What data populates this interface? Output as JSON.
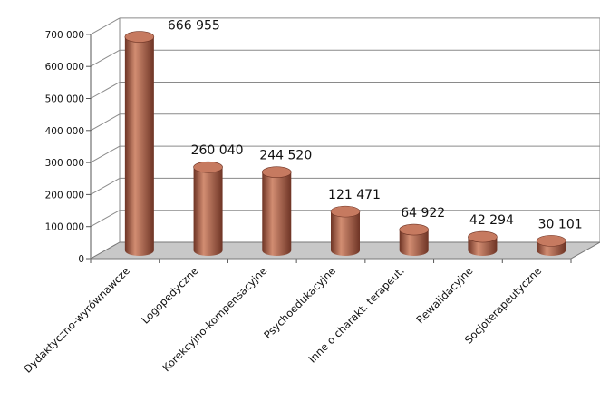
{
  "chart_data": {
    "type": "bar",
    "style": "3d-cylinder",
    "categories": [
      "Dydaktyczno-wyrównawcze",
      "Logopedyczne",
      "Korekcyjno-kompensacyjne",
      "Psychoedukacyjne",
      "Inne o charakt. terapeut.",
      "Rewalidacyjne",
      "Socjoterapeutyczne"
    ],
    "values": [
      666955,
      260040,
      244520,
      121471,
      64922,
      42294,
      30101
    ],
    "data_labels": [
      "666 955",
      "260 040",
      "244 520",
      "121 471",
      "64 922",
      "42 294",
      "30 101"
    ],
    "y_ticks": [
      "0",
      "100 000",
      "200 000",
      "300 000",
      "400 000",
      "500 000",
      "600 000",
      "700 000"
    ],
    "ylim": [
      0,
      700000
    ],
    "title": "",
    "xlabel": "",
    "ylabel": "",
    "grid": true,
    "legend": "none",
    "colors": {
      "bar_body": "#a65a42",
      "bar_light": "#d28d72",
      "bar_dark": "#6e3425",
      "bar_top": "#c67a60",
      "floor": "#c8c8c8",
      "gridline": "#8a8a8a"
    }
  }
}
